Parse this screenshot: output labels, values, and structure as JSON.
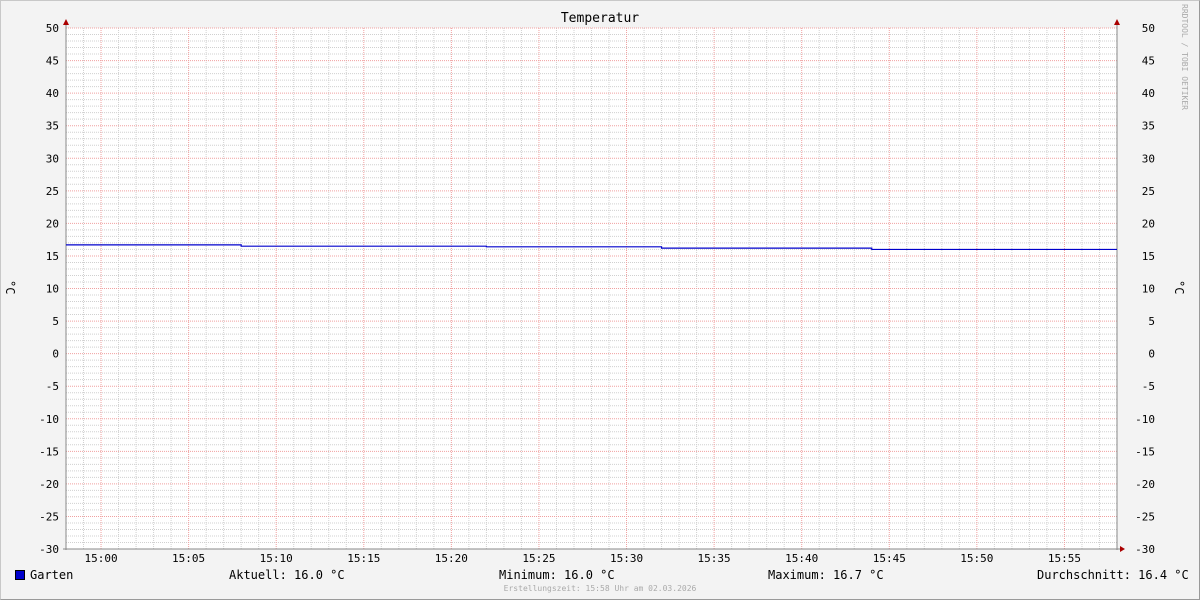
{
  "chart_data": {
    "type": "line",
    "title": "Temperatur",
    "ylabel": "°C",
    "ylim": [
      -30,
      50
    ],
    "xlim": [
      "14:58",
      "15:58"
    ],
    "yticks": [
      50,
      45,
      40,
      35,
      30,
      25,
      20,
      15,
      10,
      5,
      0,
      -5,
      -10,
      -15,
      -20,
      -25,
      -30
    ],
    "xticks": [
      "15:00",
      "15:05",
      "15:10",
      "15:15",
      "15:20",
      "15:25",
      "15:30",
      "15:35",
      "15:40",
      "15:45",
      "15:50",
      "15:55"
    ],
    "grid": true,
    "series": [
      {
        "name": "Garten",
        "color": "#0000cc",
        "x": [
          "14:58",
          "15:08",
          "15:22",
          "15:32",
          "15:44",
          "15:58"
        ],
        "y": [
          16.7,
          16.5,
          16.4,
          16.2,
          16.0,
          16.0
        ],
        "step": true
      }
    ]
  },
  "legend": {
    "series": "Garten",
    "current": "Aktuell: 16.0 °C",
    "min": "Minimum: 16.0 °C",
    "max": "Maximum: 16.7 °C",
    "avg": "Durchschnitt: 16.4 °C"
  },
  "footer": "Erstellungszeit: 15:58 Uhr am 02.03.2026",
  "watermark": "RRDTOOL / TOBI OETIKER"
}
